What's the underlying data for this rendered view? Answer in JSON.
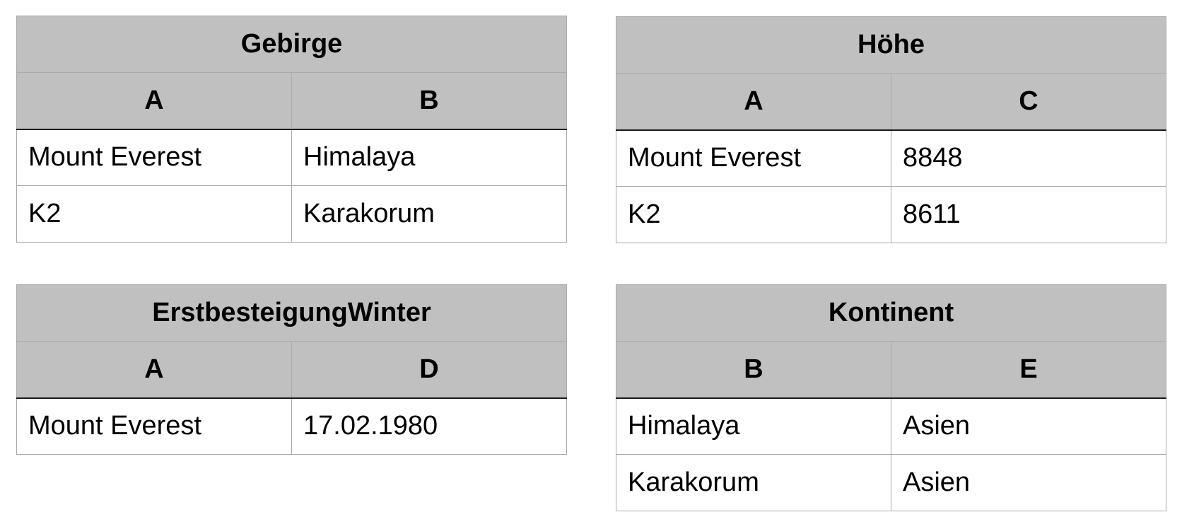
{
  "tables": [
    {
      "title": "Gebirge",
      "columns": [
        "A",
        "B"
      ],
      "rows": [
        [
          "Mount Everest",
          "Himalaya"
        ],
        [
          "K2",
          "Karakorum"
        ]
      ]
    },
    {
      "title": "Höhe",
      "columns": [
        "A",
        "C"
      ],
      "rows": [
        [
          "Mount Everest",
          "8848"
        ],
        [
          "K2",
          "8611"
        ]
      ]
    },
    {
      "title": "ErstbesteigungWinter",
      "columns": [
        "A",
        "D"
      ],
      "rows": [
        [
          "Mount Everest",
          "17.02.1980"
        ]
      ]
    },
    {
      "title": "Kontinent",
      "columns": [
        "B",
        "E"
      ],
      "rows": [
        [
          "Himalaya",
          "Asien"
        ],
        [
          "Karakorum",
          "Asien"
        ]
      ]
    }
  ]
}
